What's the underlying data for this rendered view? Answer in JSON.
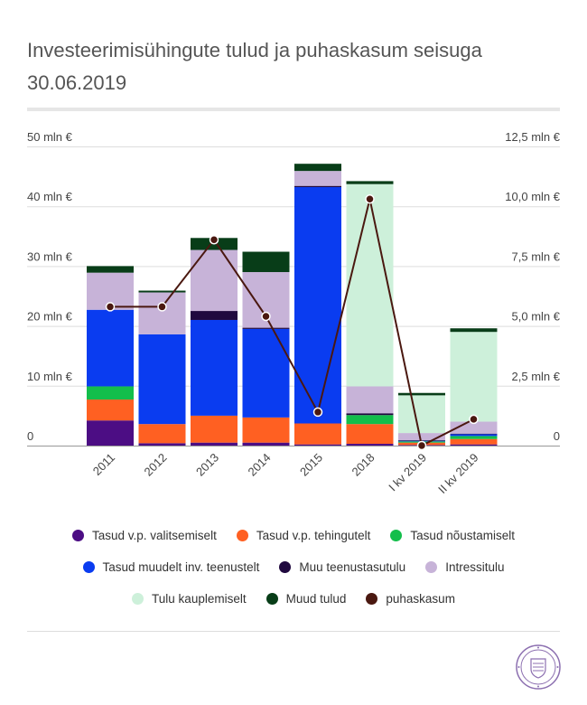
{
  "title": "Investeerimisühingute tulud ja puhaskasum seisuga 30.06.2019",
  "chart_data": {
    "type": "bar",
    "stacked": true,
    "title": "Investeerimisühingute tulud ja puhaskasum seisuga 30.06.2019",
    "categories": [
      "2011",
      "2012",
      "2013",
      "2014",
      "2015",
      "2018",
      "I kv 2019",
      "II kv 2019"
    ],
    "ylim": [
      0,
      50
    ],
    "y2lim": [
      0,
      12.5
    ],
    "y_ticks": [
      "0",
      "10 mln €",
      "20 mln €",
      "30 mln €",
      "40 mln €",
      "50 mln €"
    ],
    "y2_ticks": [
      "0",
      "2,5 mln €",
      "5,0 mln €",
      "7,5 mln €",
      "10,0 mln €",
      "12,5 mln €"
    ],
    "grid": true,
    "legend_position": "bottom",
    "series": [
      {
        "name": "Tasud v.p. valitsemiselt",
        "color": "#4c0d84",
        "axis": "left",
        "values": [
          4.2,
          0.4,
          0.5,
          0.5,
          0.2,
          0.3,
          0.1,
          0.2
        ]
      },
      {
        "name": "Tasud v.p. tehingutelt",
        "color": "#ff6022",
        "axis": "left",
        "values": [
          3.5,
          3.2,
          4.5,
          4.2,
          3.5,
          3.3,
          0.4,
          0.9
        ]
      },
      {
        "name": "Tasud nõustamiselt",
        "color": "#13be4b",
        "axis": "left",
        "values": [
          2.2,
          0,
          0,
          0,
          0,
          1.5,
          0.2,
          0.5
        ]
      },
      {
        "name": "Tasud muudelt inv. teenustelt",
        "color": "#0a3cf0",
        "axis": "left",
        "values": [
          12.8,
          15.0,
          16.0,
          14.8,
          39.5,
          0,
          0.1,
          0.3
        ]
      },
      {
        "name": "Muu teenustasutulu",
        "color": "#20093f",
        "axis": "left",
        "values": [
          0,
          0,
          1.5,
          0.2,
          0.2,
          0.3,
          0.1,
          0.1
        ]
      },
      {
        "name": "Intressitulu",
        "color": "#c7b3d8",
        "axis": "left",
        "values": [
          6.2,
          7.0,
          10.2,
          9.3,
          2.5,
          4.5,
          1.2,
          2.0
        ]
      },
      {
        "name": "Tulu kauplemiselt",
        "color": "#cdf0da",
        "axis": "left",
        "values": [
          0,
          0,
          0,
          0,
          0,
          33.8,
          6.3,
          15.0
        ]
      },
      {
        "name": "Muud tulud",
        "color": "#083d18",
        "axis": "left",
        "values": [
          1.1,
          0.3,
          2.0,
          3.4,
          1.2,
          0.5,
          0.4,
          0.6
        ]
      }
    ],
    "line": {
      "name": "puhaskasum",
      "color": "#4a1810",
      "axis": "right",
      "values": [
        5.8,
        5.8,
        8.6,
        5.4,
        1.4,
        10.3,
        0.0,
        1.1
      ]
    }
  }
}
